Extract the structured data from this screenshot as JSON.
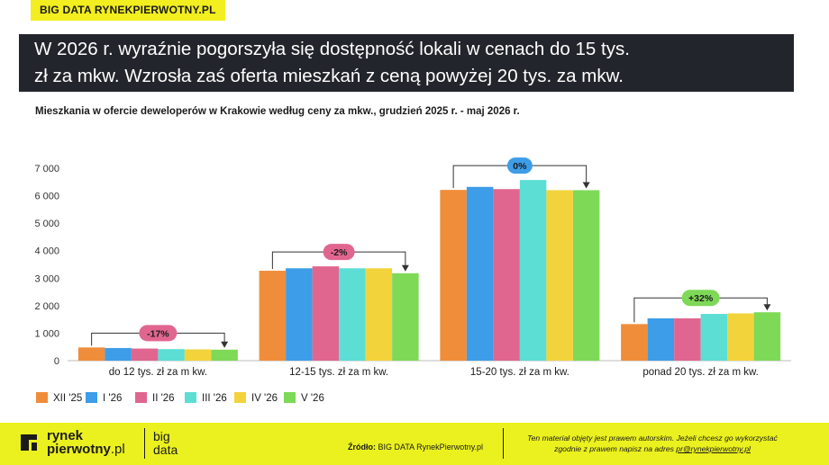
{
  "brand_tag": "BIG DATA RYNEKPIERWOTNY.PL",
  "headline": {
    "line1": "W 2026 r. wyraźnie pogorszyła się dostępność lokali w cenach do 15 tys.",
    "line2": "zł za mkw. Wzrosła zaś oferta mieszkań z ceną powyżej 20 tys. za mkw."
  },
  "chart_data": {
    "type": "bar",
    "title": "Mieszkania w ofercie deweloperów w Krakowie według ceny za mkw., grudzień 2025 r. - maj 2026 r.",
    "categories": [
      "do 12 tys. zł za m kw.",
      "12-15 tys. zł za m kw.",
      "15-20 tys. zł za m kw.",
      "ponad 20 tys. zł za m kw."
    ],
    "series": [
      {
        "name": "XII '25",
        "color": "#f08d3a",
        "values": [
          480,
          3270,
          6210,
          1330
        ]
      },
      {
        "name": "I '26",
        "color": "#3d9de8",
        "values": [
          460,
          3360,
          6320,
          1540
        ]
      },
      {
        "name": "II '26",
        "color": "#e06690",
        "values": [
          440,
          3430,
          6240,
          1540
        ]
      },
      {
        "name": "III '26",
        "color": "#5cded4",
        "values": [
          420,
          3360,
          6570,
          1700
        ]
      },
      {
        "name": "IV '26",
        "color": "#f3d33c",
        "values": [
          410,
          3360,
          6200,
          1720
        ]
      },
      {
        "name": "V '26",
        "color": "#7ed957",
        "values": [
          400,
          3180,
          6200,
          1760
        ]
      }
    ],
    "yticks": [
      "0",
      "1 000",
      "2 000",
      "3 000",
      "4 000",
      "5 000",
      "6 000",
      "7 000"
    ],
    "ylim": [
      0,
      7000
    ],
    "changes": [
      {
        "label": "-17%",
        "color": "#e06690"
      },
      {
        "label": "-2%",
        "color": "#e06690"
      },
      {
        "label": "0%",
        "color": "#3d9de8"
      },
      {
        "label": "+32%",
        "color": "#7ed957"
      }
    ],
    "legend_position": "bottom-left"
  },
  "footer": {
    "logo_word1": "rynek",
    "logo_word2": "pierwotny",
    "logo_suffix": ".pl",
    "logo_bd1": "big",
    "logo_bd2": "data",
    "source_label": "Źródło:",
    "source_text": " BIG DATA RynekPierwotny.pl",
    "copy_line1": "Ten materiał objęty jest prawem autorskim. Jeżeli chcesz go wykorzystać",
    "copy_line2": "zgodnie z prawem napisz na adres ",
    "copy_email": "pr@rynekpierwotny.pl"
  }
}
